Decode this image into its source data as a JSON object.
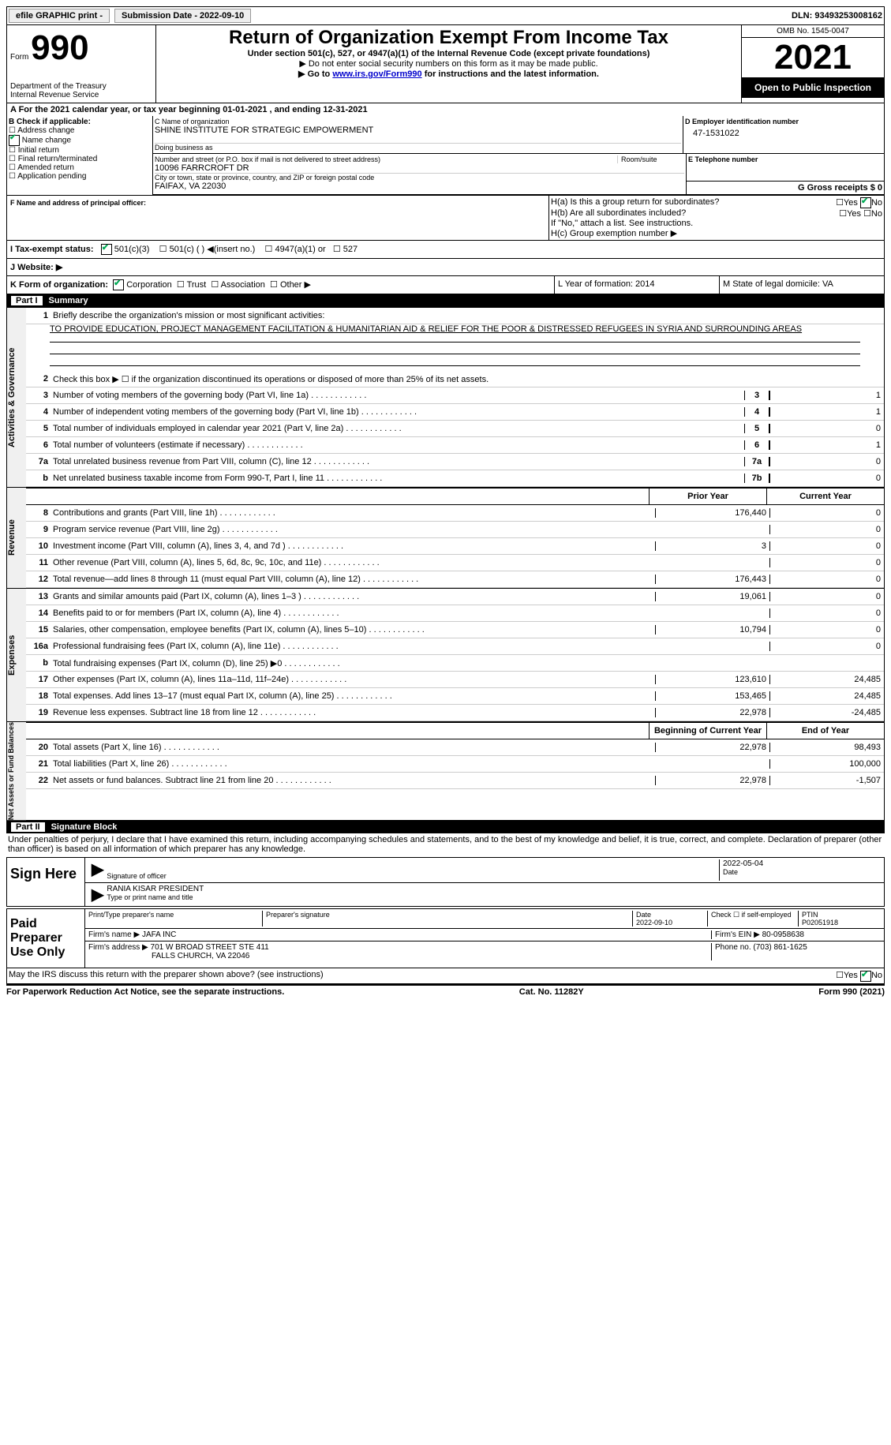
{
  "toolbar": {
    "efile": "efile GRAPHIC print -",
    "submission": "Submission Date - 2022-09-10",
    "dln": "DLN: 93493253008162"
  },
  "header": {
    "form_word": "Form",
    "form_number": "990",
    "dept": "Department of the Treasury",
    "irs": "Internal Revenue Service",
    "title": "Return of Organization Exempt From Income Tax",
    "subtitle": "Under section 501(c), 527, or 4947(a)(1) of the Internal Revenue Code (except private foundations)",
    "note1": "▶ Do not enter social security numbers on this form as it may be made public.",
    "note2_pre": "▶ Go to ",
    "note2_link": "www.irs.gov/Form990",
    "note2_post": " for instructions and the latest information.",
    "omb": "OMB No. 1545-0047",
    "year": "2021",
    "open": "Open to Public Inspection"
  },
  "section_a": {
    "a_line": "A For the 2021 calendar year, or tax year beginning 01-01-2021   , and ending 12-31-2021",
    "b_label": "B Check if applicable:",
    "b_opts": [
      "Address change",
      "Name change",
      "Initial return",
      "Final return/terminated",
      "Amended return",
      "Application pending"
    ],
    "c_label": "C Name of organization",
    "c_name": "SHINE INSTITUTE FOR STRATEGIC EMPOWERMENT",
    "dba": "Doing business as",
    "addr_label": "Number and street (or P.O. box if mail is not delivered to street address)",
    "room": "Room/suite",
    "addr": "10096 FARRCROFT DR",
    "city_label": "City or town, state or province, country, and ZIP or foreign postal code",
    "city": "FAIFAX, VA  22030",
    "d_label": "D Employer identification number",
    "d_val": "47-1531022",
    "e_label": "E Telephone number",
    "g_label": "G Gross receipts $ 0",
    "f_label": "F Name and address of principal officer:",
    "ha": "H(a)  Is this a group return for subordinates?",
    "hb": "H(b)  Are all subordinates included?",
    "hb_note": "If \"No,\" attach a list. See instructions.",
    "hc": "H(c)  Group exemption number ▶",
    "i_label": "I   Tax-exempt status:",
    "i_501c3": "501(c)(3)",
    "i_501c": "501(c) (  ) ◀(insert no.)",
    "i_4947": "4947(a)(1) or",
    "i_527": "527",
    "j_label": "J   Website: ▶",
    "k_label": "K Form of organization:",
    "k_corp": "Corporation",
    "k_trust": "Trust",
    "k_assoc": "Association",
    "k_other": "Other ▶",
    "l_label": "L Year of formation: 2014",
    "m_label": "M State of legal domicile: VA"
  },
  "part1": {
    "title": "Summary",
    "q1": "Briefly describe the organization's mission or most significant activities:",
    "mission": "TO PROVIDE EDUCATION, PROJECT MANAGEMENT FACILITATION & HUMANITARIAN AID & RELIEF FOR THE POOR & DISTRESSED REFUGEES IN SYRIA AND SURROUNDING AREAS",
    "q2": "Check this box ▶ ☐ if the organization discontinued its operations or disposed of more than 25% of its net assets.",
    "rows_a": [
      {
        "n": "3",
        "d": "Number of voting members of the governing body (Part VI, line 1a)",
        "b": "3",
        "v": "1"
      },
      {
        "n": "4",
        "d": "Number of independent voting members of the governing body (Part VI, line 1b)",
        "b": "4",
        "v": "1"
      },
      {
        "n": "5",
        "d": "Total number of individuals employed in calendar year 2021 (Part V, line 2a)",
        "b": "5",
        "v": "0"
      },
      {
        "n": "6",
        "d": "Total number of volunteers (estimate if necessary)",
        "b": "6",
        "v": "1"
      },
      {
        "n": "7a",
        "d": "Total unrelated business revenue from Part VIII, column (C), line 12",
        "b": "7a",
        "v": "0"
      },
      {
        "n": "b",
        "d": "Net unrelated business taxable income from Form 990-T, Part I, line 11",
        "b": "7b",
        "v": "0"
      }
    ],
    "hdr_prior": "Prior Year",
    "hdr_curr": "Current Year",
    "revenue": [
      {
        "n": "8",
        "d": "Contributions and grants (Part VIII, line 1h)",
        "p": "176,440",
        "c": "0"
      },
      {
        "n": "9",
        "d": "Program service revenue (Part VIII, line 2g)",
        "p": "",
        "c": "0"
      },
      {
        "n": "10",
        "d": "Investment income (Part VIII, column (A), lines 3, 4, and 7d )",
        "p": "3",
        "c": "0"
      },
      {
        "n": "11",
        "d": "Other revenue (Part VIII, column (A), lines 5, 6d, 8c, 9c, 10c, and 11e)",
        "p": "",
        "c": "0"
      },
      {
        "n": "12",
        "d": "Total revenue—add lines 8 through 11 (must equal Part VIII, column (A), line 12)",
        "p": "176,443",
        "c": "0"
      }
    ],
    "expenses": [
      {
        "n": "13",
        "d": "Grants and similar amounts paid (Part IX, column (A), lines 1–3 )",
        "p": "19,061",
        "c": "0"
      },
      {
        "n": "14",
        "d": "Benefits paid to or for members (Part IX, column (A), line 4)",
        "p": "",
        "c": "0"
      },
      {
        "n": "15",
        "d": "Salaries, other compensation, employee benefits (Part IX, column (A), lines 5–10)",
        "p": "10,794",
        "c": "0"
      },
      {
        "n": "16a",
        "d": "Professional fundraising fees (Part IX, column (A), line 11e)",
        "p": "",
        "c": "0"
      },
      {
        "n": "b",
        "d": "Total fundraising expenses (Part IX, column (D), line 25) ▶0",
        "p": "GRAY",
        "c": "GRAY"
      },
      {
        "n": "17",
        "d": "Other expenses (Part IX, column (A), lines 11a–11d, 11f–24e)",
        "p": "123,610",
        "c": "24,485"
      },
      {
        "n": "18",
        "d": "Total expenses. Add lines 13–17 (must equal Part IX, column (A), line 25)",
        "p": "153,465",
        "c": "24,485"
      },
      {
        "n": "19",
        "d": "Revenue less expenses. Subtract line 18 from line 12",
        "p": "22,978",
        "c": "-24,485"
      }
    ],
    "hdr_begin": "Beginning of Current Year",
    "hdr_end": "End of Year",
    "net": [
      {
        "n": "20",
        "d": "Total assets (Part X, line 16)",
        "p": "22,978",
        "c": "98,493"
      },
      {
        "n": "21",
        "d": "Total liabilities (Part X, line 26)",
        "p": "",
        "c": "100,000"
      },
      {
        "n": "22",
        "d": "Net assets or fund balances. Subtract line 21 from line 20",
        "p": "22,978",
        "c": "-1,507"
      }
    ],
    "side_a": "Activities & Governance",
    "side_r": "Revenue",
    "side_e": "Expenses",
    "side_n": "Net Assets or Fund Balances"
  },
  "part2": {
    "title": "Signature Block",
    "penalty": "Under penalties of perjury, I declare that I have examined this return, including accompanying schedules and statements, and to the best of my knowledge and belief, it is true, correct, and complete. Declaration of preparer (other than officer) is based on all information of which preparer has any knowledge.",
    "sign_here": "Sign Here",
    "sig_of_officer": "Signature of officer",
    "sig_date": "2022-05-04",
    "date_lbl": "Date",
    "officer_name": "RANIA KISAR PRESIDENT",
    "type_name": "Type or print name and title",
    "paid": "Paid Preparer Use Only",
    "print_name": "Print/Type preparer's name",
    "prep_sig": "Preparer's signature",
    "date2": "Date",
    "date2_val": "2022-09-10",
    "check_self": "Check ☐ if self-employed",
    "ptin": "PTIN",
    "ptin_val": "P02051918",
    "firm_name": "Firm's name   ▶ JAFA INC",
    "firm_ein": "Firm's EIN ▶ 80-0958638",
    "firm_addr": "Firm's address ▶ 701 W BROAD STREET STE 411",
    "firm_city": "FALLS CHURCH, VA  22046",
    "phone": "Phone no. (703) 861-1625",
    "may_irs": "May the IRS discuss this return with the preparer shown above? (see instructions)"
  },
  "footer": {
    "left": "For Paperwork Reduction Act Notice, see the separate instructions.",
    "mid": "Cat. No. 11282Y",
    "right": "Form 990 (2021)"
  }
}
